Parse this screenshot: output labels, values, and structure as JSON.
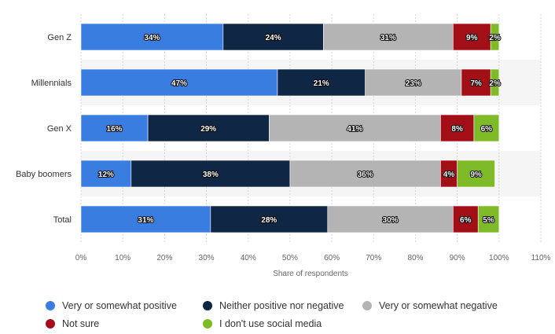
{
  "chart_data": {
    "type": "bar",
    "orientation": "horizontal",
    "stacked": true,
    "categories": [
      "Gen Z",
      "Millennials",
      "Gen X",
      "Baby boomers",
      "Total"
    ],
    "series": [
      {
        "name": "Very or somewhat positive",
        "color": "#3a7de0",
        "values": [
          34,
          47,
          16,
          12,
          31
        ]
      },
      {
        "name": "Neither positive nor negative",
        "color": "#0f2644",
        "values": [
          24,
          21,
          29,
          38,
          28
        ]
      },
      {
        "name": "Very or somewhat negative",
        "color": "#b4b4b4",
        "values": [
          31,
          23,
          41,
          36,
          30
        ]
      },
      {
        "name": "Not sure",
        "color": "#a30f17",
        "values": [
          9,
          7,
          8,
          4,
          6
        ]
      },
      {
        "name": "I don't use social media",
        "color": "#7fba28",
        "values": [
          2,
          2,
          6,
          9,
          5
        ]
      }
    ],
    "data_label_suffix": "%",
    "xlabel": "Share of respondents",
    "ylabel": "",
    "xlim": [
      0,
      110
    ],
    "xticks": [
      0,
      10,
      20,
      30,
      40,
      50,
      60,
      70,
      80,
      90,
      100,
      110
    ],
    "tick_suffix": "%",
    "grid": true,
    "legend_position": "bottom"
  }
}
